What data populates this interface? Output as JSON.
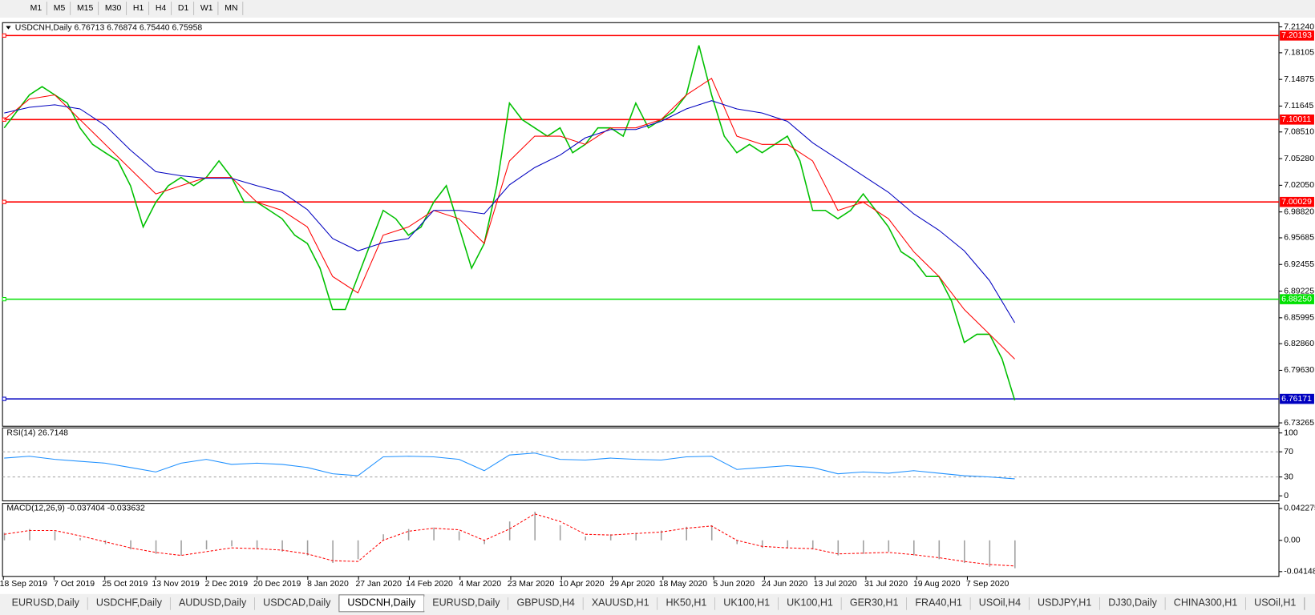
{
  "toolbar": {
    "timeframes": [
      "M1",
      "M5",
      "M15",
      "M30",
      "H1",
      "H4",
      "D1",
      "W1",
      "MN"
    ]
  },
  "chart_data": [
    {
      "type": "line",
      "title": "USDCNH,Daily  6.76713 6.76874 6.75440 6.75958",
      "ylim": [
        6.7296,
        7.2165
      ],
      "yticks": [
        {
          "value": 7.2124,
          "label": "7.21240"
        },
        7.18105,
        7.14875,
        7.11645,
        {
          "value": 7.0851,
          "label": "7.08510"
        },
        {
          "value": 7.0528,
          "label": "7.05280"
        },
        {
          "value": 7.0205,
          "label": "7.02050"
        },
        {
          "value": 6.9882,
          "label": "6.98820"
        },
        6.95685,
        6.92455,
        6.89225,
        6.85995,
        {
          "value": 6.8286,
          "label": "6.82860"
        },
        {
          "value": 6.7963,
          "label": "6.79630"
        },
        6.73265
      ],
      "levels": [
        {
          "value": 7.20193,
          "color": "#ff0000"
        },
        {
          "value": 7.10011,
          "color": "#ff0000"
        },
        {
          "value": 7.00029,
          "color": "#ff0000"
        },
        {
          "value": 6.8825,
          "label": "6.88250",
          "color": "#00e000"
        },
        {
          "value": 6.76171,
          "color": "#0000c0"
        }
      ],
      "series": [
        {
          "color": "#00c000",
          "values": [
            7.09,
            7.11,
            7.13,
            7.14,
            7.13,
            7.12,
            7.09,
            7.07,
            7.06,
            7.05,
            7.02,
            6.97,
            7.0,
            7.02,
            7.03,
            7.02,
            7.03,
            7.05,
            7.03,
            7.0,
            7.0,
            6.99,
            6.98,
            6.96,
            6.95,
            6.92,
            6.87,
            6.87,
            6.91,
            6.95,
            6.99,
            6.98,
            6.96,
            6.97,
            7.0,
            7.02,
            6.97,
            6.92,
            6.95,
            7.02,
            7.12,
            7.1,
            7.09,
            7.08,
            7.09,
            7.06,
            7.07,
            7.09,
            7.09,
            7.08,
            7.12,
            7.09,
            7.1,
            7.11,
            7.13,
            7.19,
            7.13,
            7.08,
            7.06,
            7.07,
            7.06,
            7.07,
            7.08,
            7.05,
            6.99,
            6.99,
            6.98,
            6.99,
            7.01,
            6.99,
            6.97,
            6.94,
            6.93,
            6.91,
            6.91,
            6.88,
            6.83,
            6.84,
            6.84,
            6.81,
            6.76
          ]
        },
        {
          "color": "#ff0000",
          "values": [
            7.1,
            7.125,
            7.13,
            7.1,
            7.07,
            7.04,
            7.01,
            7.02,
            7.03,
            7.03,
            7.0,
            6.99,
            6.97,
            6.91,
            6.89,
            6.96,
            6.97,
            6.99,
            6.98,
            6.95,
            7.05,
            7.08,
            7.08,
            7.07,
            7.09,
            7.09,
            7.1,
            7.13,
            7.15,
            7.08,
            7.07,
            7.07,
            7.05,
            6.99,
            7.0,
            6.98,
            6.94,
            6.91,
            6.87,
            6.84,
            6.81
          ]
        },
        {
          "color": "#0000c0",
          "values": [
            7.108,
            7.115,
            7.118,
            7.113,
            7.093,
            7.063,
            7.037,
            7.032,
            7.029,
            7.029,
            7.02,
            7.012,
            6.991,
            6.956,
            6.941,
            6.951,
            6.956,
            6.99,
            6.99,
            6.986,
            7.021,
            7.042,
            7.057,
            7.078,
            7.088,
            7.088,
            7.098,
            7.113,
            7.123,
            7.113,
            7.108,
            7.098,
            7.072,
            7.052,
            7.032,
            7.012,
            6.986,
            6.966,
            6.941,
            6.905,
            6.854
          ]
        }
      ]
    },
    {
      "type": "line",
      "title": "RSI(14) 26.7148",
      "ylim": [
        -6.7,
        106.7
      ],
      "yticks": [
        100,
        70,
        30,
        0
      ],
      "levels": [
        70,
        30
      ],
      "series": [
        {
          "color": "#1e90ff",
          "values": [
            60,
            63,
            58,
            55,
            52,
            45,
            38,
            52,
            58,
            50,
            52,
            50,
            45,
            35,
            32,
            62,
            63,
            62,
            58,
            40,
            65,
            68,
            58,
            57,
            60,
            58,
            57,
            62,
            63,
            42,
            45,
            48,
            45,
            35,
            38,
            36,
            40,
            36,
            32,
            30,
            27
          ]
        }
      ]
    },
    {
      "type": "bar",
      "title": "MACD(12,26,9) -0.037404 -0.033632",
      "ylim": [
        -0.0467,
        0.04784
      ],
      "yticks": [
        0.042275,
        {
          "value": 0,
          "label": "0.00"
        },
        -0.04148
      ],
      "series": [
        {
          "type": "bar",
          "color": "#a0a0a0",
          "values": [
            0.01,
            0.015,
            0.012,
            0.003,
            -0.005,
            -0.012,
            -0.018,
            -0.02,
            -0.012,
            -0.008,
            -0.012,
            -0.015,
            -0.02,
            -0.03,
            -0.025,
            0.008,
            0.015,
            0.017,
            0.012,
            -0.005,
            0.025,
            0.038,
            0.02,
            0.005,
            0.008,
            0.01,
            0.013,
            0.018,
            0.02,
            -0.005,
            -0.01,
            -0.01,
            -0.012,
            -0.02,
            -0.018,
            -0.015,
            -0.02,
            -0.025,
            -0.03,
            -0.035,
            -0.037
          ]
        },
        {
          "type": "line",
          "color": "#ff0000",
          "dashed": true,
          "values": [
            0.008,
            0.013,
            0.013,
            0.006,
            -0.002,
            -0.01,
            -0.016,
            -0.02,
            -0.015,
            -0.01,
            -0.011,
            -0.013,
            -0.018,
            -0.027,
            -0.028,
            0.0,
            0.012,
            0.016,
            0.014,
            0.0,
            0.015,
            0.035,
            0.025,
            0.008,
            0.007,
            0.009,
            0.011,
            0.016,
            0.019,
            0.0,
            -0.008,
            -0.01,
            -0.011,
            -0.018,
            -0.017,
            -0.016,
            -0.019,
            -0.023,
            -0.028,
            -0.032,
            -0.034
          ]
        }
      ]
    }
  ],
  "date_axis": [
    "18 Sep 2019",
    "7 Oct 2019",
    "25 Oct 2019",
    "13 Nov 2019",
    "2 Dec 2019",
    "20 Dec 2019",
    "8 Jan 2020",
    "27 Jan 2020",
    "14 Feb 2020",
    "4 Mar 2020",
    "23 Mar 2020",
    "10 Apr 2020",
    "29 Apr 2020",
    "18 May 2020",
    "5 Jun 2020",
    "24 Jun 2020",
    "13 Jul 2020",
    "31 Jul 2020",
    "19 Aug 2020",
    "7 Sep 2020"
  ],
  "tabs": [
    "EURUSD,Daily",
    "USDCHF,Daily",
    "AUDUSD,Daily",
    "USDCAD,Daily",
    "USDCNH,Daily",
    "EURUSD,Daily",
    "GBPUSD,H4",
    "XAUUSD,H1",
    "HK50,H1",
    "UK100,H1",
    "UK100,H1",
    "GER30,H1",
    "FRA40,H1",
    "USOil,H4",
    "USDJPY,H1",
    "DJ30,Daily",
    "CHINA300,H1",
    "USOil,H1"
  ],
  "active_tab": 4
}
